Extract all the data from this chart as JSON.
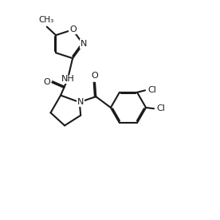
{
  "background": "#ffffff",
  "line_color": "#1a1a1a",
  "line_width": 1.5,
  "font_size": 8.0,
  "figure_size": [
    2.76,
    2.76
  ],
  "dpi": 100,
  "xlim": [
    0,
    11
  ],
  "ylim": [
    0,
    11
  ]
}
